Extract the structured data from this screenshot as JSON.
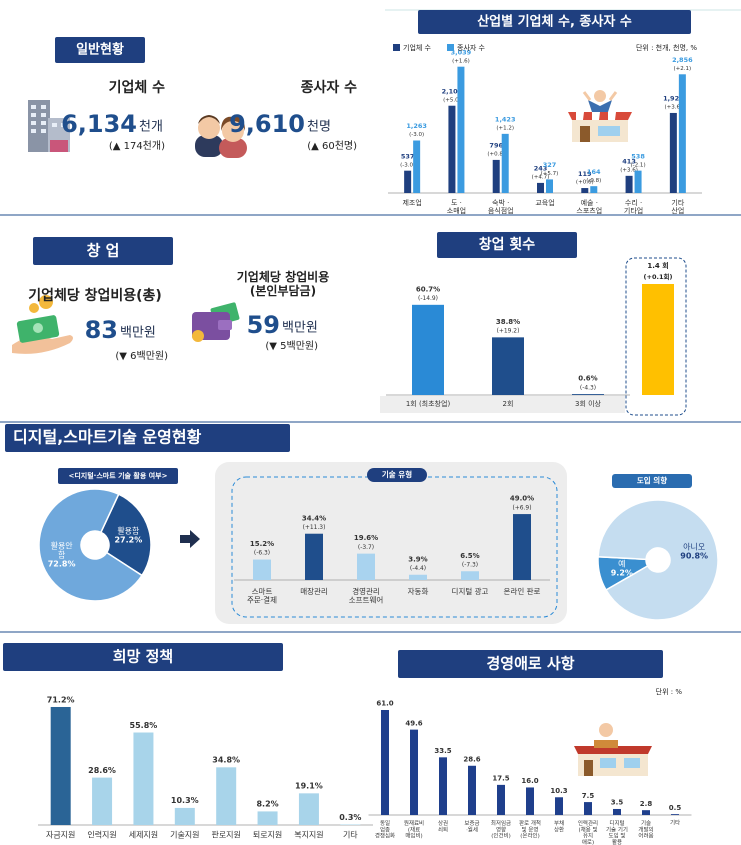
{
  "general": {
    "title": "일반현황",
    "enterprises": {
      "label": "기업체 수",
      "value": "6,134",
      "unit": "천개",
      "change": "(▲ 174천개)"
    },
    "workers": {
      "label": "종사자 수",
      "value": "9,610",
      "unit": "천명",
      "change": "(▲ 60천명)"
    }
  },
  "startup": {
    "title": "창 업",
    "cost_total": {
      "label": "기업체당 창업비용(총)",
      "value": "83",
      "unit": "백만원",
      "change": "(▼ 6백만원)"
    },
    "cost_own": {
      "label": "기업체당 창업비용\n(본인부담금)",
      "value": "59",
      "unit": "백만원",
      "change": "(▼ 5백만원)"
    }
  },
  "digital": {
    "title": "디지털,스마트기술 운영현황"
  },
  "chart_data": [
    {
      "type": "bar",
      "title": "산업별 기업체 수, 종사자 수",
      "unit_note": "단위 : 천개, 천명, %",
      "categories": [
        "제조업",
        "도 ·\n소매업",
        "숙박 ·\n음식점업",
        "교육업",
        "예술 ·\n스포츠업",
        "수리 ·\n기타업",
        "기타\n산업"
      ],
      "series": [
        {
          "name": "기업체 수",
          "color": "#1f3f7f",
          "values": [
            537,
            2100,
            796,
            243,
            119,
            413,
            1926
          ],
          "value_labels": [
            "537",
            "2,100",
            "796",
            "243",
            "119",
            "413",
            "1,926"
          ],
          "changes": [
            "(-3.0)",
            "(+5.0)",
            "(+0.8)",
            "(+4.7)",
            "(+0.6)",
            "(+3.6)",
            "(+3.6)"
          ]
        },
        {
          "name": "종사자 수",
          "color": "#3b9be0",
          "values": [
            1263,
            3039,
            1423,
            327,
            164,
            538,
            2856
          ],
          "value_labels": [
            "1,263",
            "3,039",
            "1,423",
            "327",
            "164",
            "538",
            "2,856"
          ],
          "changes": [
            "(-3.0)",
            "(+1.6)",
            "(+1.2)",
            "(+5.7)",
            "(-0.8)",
            "(-2.1)",
            "(+2.1)"
          ]
        }
      ],
      "ylim": [
        0,
        3200
      ],
      "legend": "top-left"
    },
    {
      "type": "bar",
      "title": "창업 횟수",
      "categories": [
        "1회 (최초창업)",
        "2회",
        "3회 이상"
      ],
      "values": [
        60.7,
        38.8,
        0.6
      ],
      "value_labels": [
        "60.7%",
        "38.8%",
        "0.6%"
      ],
      "changes": [
        "(-14.9)",
        "(+19.2)",
        "(-4.3)"
      ],
      "colors": [
        "#2a8ad6",
        "#1f4e8c",
        "#1f4e8c"
      ],
      "ylim": [
        0,
        70
      ],
      "average": {
        "value": 1.4,
        "label": "1.4 회",
        "change": "(+0.1회)",
        "color": "#ffc000"
      }
    },
    {
      "type": "pie",
      "title": "<디지털·스마트 기술 활용 여부>",
      "categories": [
        "활용함",
        "활용안\n함"
      ],
      "values": [
        27.2,
        72.8
      ],
      "value_labels": [
        "27.2%",
        "72.8%"
      ],
      "colors": [
        "#1f4e8c",
        "#6fa8dc"
      ]
    },
    {
      "type": "bar",
      "title": "기술 유형",
      "categories": [
        "스마트\n주문·결제",
        "매장관리",
        "경영관리\n소프트웨어",
        "자동화",
        "디지털 광고",
        "온라인 판로"
      ],
      "values": [
        15.2,
        34.4,
        19.6,
        3.9,
        6.5,
        49.0
      ],
      "value_labels": [
        "15.2%",
        "34.4%",
        "19.6%",
        "3.9%",
        "6.5%",
        "49.0%"
      ],
      "changes": [
        "(-6.3)",
        "(+11.3)",
        "(-3.7)",
        "(-4.4)",
        "(-7.3)",
        "(+6.9)"
      ],
      "colors": [
        "#a9d3ef",
        "#1f4e8c",
        "#a9d3ef",
        "#a9d3ef",
        "#a9d3ef",
        "#1f4e8c"
      ],
      "ylim": [
        0,
        55
      ]
    },
    {
      "type": "pie",
      "title": "도입 의향",
      "categories": [
        "예",
        "아니오"
      ],
      "values": [
        9.2,
        90.8
      ],
      "value_labels": [
        "9.2%",
        "90.8%"
      ],
      "colors": [
        "#3a8fd0",
        "#c5ddf0"
      ]
    },
    {
      "type": "bar",
      "title": "희망 정책",
      "categories": [
        "자금지원",
        "인력지원",
        "세제지원",
        "기술지원",
        "판로지원",
        "퇴로지원",
        "복지지원",
        "기타"
      ],
      "values": [
        71.2,
        28.6,
        55.8,
        10.3,
        34.8,
        8.2,
        19.1,
        0.3
      ],
      "value_labels": [
        "71.2%",
        "28.6%",
        "55.8%",
        "10.3%",
        "34.8%",
        "8.2%",
        "19.1%",
        "0.3%"
      ],
      "colors": [
        "#2a6496",
        "#a8d4ea",
        "#a8d4ea",
        "#a8d4ea",
        "#a8d4ea",
        "#a8d4ea",
        "#a8d4ea",
        "#a8d4ea"
      ],
      "ylim": [
        0,
        80
      ]
    },
    {
      "type": "bar",
      "title": "경영애로 사항",
      "unit_note": "단위 : %",
      "categories": [
        "동일\n업종\n경쟁심화",
        "원재료비\n(재료\n매입비)",
        "상권\n쇠퇴",
        "보증금\n·월세",
        "최저임금\n영향\n(인건비)",
        "판로 개척\n및 운영\n(온라인)",
        "부채\n상환",
        "인력관리\n(채용 및\n유지\n애로)",
        "디지털\n기술 기기\n도입 및\n활용",
        "기술\n개발의\n어려움",
        "기타"
      ],
      "values": [
        61.0,
        49.6,
        33.5,
        28.6,
        17.5,
        16.0,
        10.3,
        7.5,
        3.5,
        2.8,
        0.5
      ],
      "value_labels": [
        "61.0",
        "49.6",
        "33.5",
        "28.6",
        "17.5",
        "16.0",
        "10.3",
        "7.5",
        "3.5",
        "2.8",
        "0.5"
      ],
      "color": "#1f3f8c",
      "ylim": [
        0,
        70
      ]
    }
  ]
}
